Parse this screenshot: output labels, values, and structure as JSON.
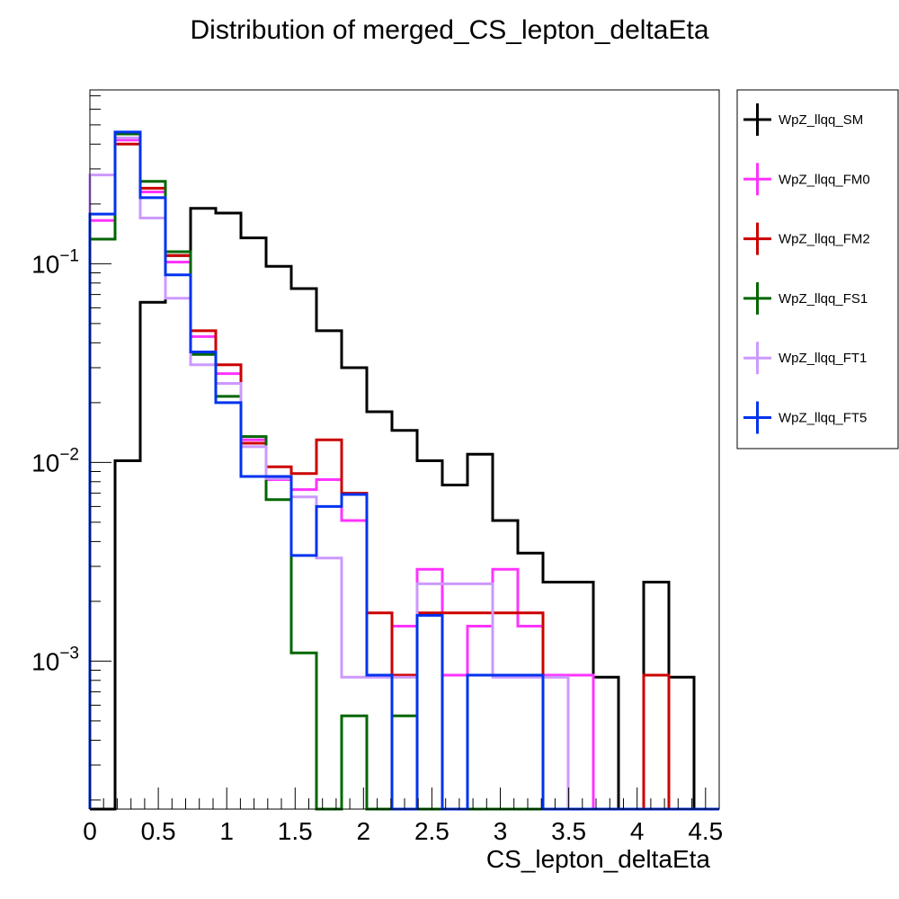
{
  "chart_data": {
    "type": "histogram",
    "title": "Distribution of merged_CS_lepton_deltaEta",
    "xlabel": "CS_lepton_deltaEta",
    "ylabel": "",
    "xlim": [
      0,
      4.6
    ],
    "ylim": [
      0.00018,
      0.75
    ],
    "yscale": "log",
    "grid": false,
    "legend_position": "right",
    "bin_edges": [
      0,
      0.184,
      0.368,
      0.552,
      0.736,
      0.92,
      1.104,
      1.288,
      1.472,
      1.656,
      1.84,
      2.024,
      2.208,
      2.392,
      2.576,
      2.76,
      2.944,
      3.128,
      3.312,
      3.496,
      3.68,
      3.864,
      4.048,
      4.232,
      4.416,
      4.6
    ],
    "x_ticks": [
      {
        "value": 0,
        "label": "0"
      },
      {
        "value": 0.5,
        "label": "0.5"
      },
      {
        "value": 1,
        "label": "1"
      },
      {
        "value": 1.5,
        "label": "1.5"
      },
      {
        "value": 2,
        "label": "2"
      },
      {
        "value": 2.5,
        "label": "2.5"
      },
      {
        "value": 3,
        "label": "3"
      },
      {
        "value": 3.5,
        "label": "3.5"
      },
      {
        "value": 4,
        "label": "4"
      },
      {
        "value": 4.5,
        "label": "4.5"
      }
    ],
    "y_ticks": [
      {
        "value": 0.1,
        "base": "10",
        "exp": "−1"
      },
      {
        "value": 0.01,
        "base": "10",
        "exp": "−2"
      },
      {
        "value": 0.001,
        "base": "10",
        "exp": "−3"
      }
    ],
    "series": [
      {
        "name": "WpZ_llqq_SM",
        "color": "#000000",
        "values": [
          0,
          0.0102,
          0.064,
          0.11,
          0.19,
          0.18,
          0.135,
          0.097,
          0.075,
          0.046,
          0.03,
          0.018,
          0.0145,
          0.0102,
          0.0077,
          0.011,
          0.0051,
          0.0035,
          0.0025,
          0.0025,
          0.00083,
          0,
          0.0025,
          0.00083,
          0
        ]
      },
      {
        "name": "WpZ_llqq_FM0",
        "color": "#ff33ff",
        "values": [
          0.165,
          0.42,
          0.23,
          0.102,
          0.043,
          0.028,
          0.013,
          0.0082,
          0.0073,
          0.0082,
          0.0051,
          0.00085,
          0.0015,
          0.0029,
          0.00085,
          0.0015,
          0.0029,
          0.0015,
          0.00085,
          0.00085,
          0,
          0,
          0,
          0,
          0
        ]
      },
      {
        "name": "WpZ_llqq_FM2",
        "color": "#cc0000",
        "values": [
          0.133,
          0.4,
          0.24,
          0.11,
          0.046,
          0.031,
          0.0125,
          0.0095,
          0.0088,
          0.013,
          0.007,
          0.00175,
          0.00085,
          0.00175,
          0.00175,
          0.00175,
          0.00175,
          0.00175,
          0,
          0,
          0,
          0,
          0.00085,
          0,
          0
        ]
      },
      {
        "name": "WpZ_llqq_FS1",
        "color": "#006600",
        "values": [
          0.133,
          0.45,
          0.26,
          0.115,
          0.035,
          0.0215,
          0.0135,
          0.0065,
          0.0011,
          0,
          0.00053,
          0,
          0.00053,
          0,
          0,
          0,
          0,
          0,
          0,
          0,
          0,
          0,
          0,
          0,
          0
        ]
      },
      {
        "name": "WpZ_llqq_FT1",
        "color": "#cc99ff",
        "values": [
          0.28,
          0.43,
          0.17,
          0.067,
          0.031,
          0.025,
          0.012,
          0.0083,
          0.0067,
          0.0033,
          0.00083,
          0.00083,
          0.00083,
          0.00245,
          0.00245,
          0.00245,
          0.00083,
          0.00083,
          0.00083,
          0,
          0,
          0,
          0,
          0,
          0
        ]
      },
      {
        "name": "WpZ_llqq_FT5",
        "color": "#0033ee",
        "values": [
          0.178,
          0.46,
          0.215,
          0.088,
          0.036,
          0.02,
          0.0085,
          0.0085,
          0.0034,
          0.006,
          0.0069,
          0.00085,
          0,
          0.0017,
          0,
          0.00085,
          0.00085,
          0.00085,
          0,
          0,
          0,
          0,
          0,
          0,
          0
        ]
      }
    ]
  }
}
